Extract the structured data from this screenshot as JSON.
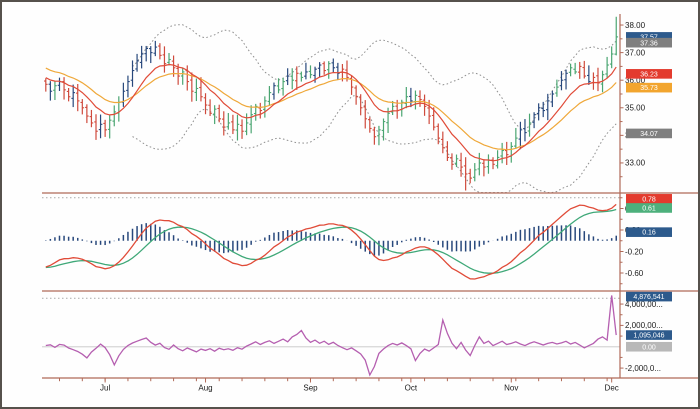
{
  "chart_data": {
    "type": "candlestick-multi-panel",
    "title": "",
    "x_axis": {
      "month_labels": [
        {
          "label": "Jul",
          "i": 13
        },
        {
          "label": "Aug",
          "i": 35
        },
        {
          "label": "Sep",
          "i": 58
        },
        {
          "label": "Oct",
          "i": 80
        },
        {
          "label": "Nov",
          "i": 102
        },
        {
          "label": "Dec",
          "i": 124
        }
      ],
      "minor_tick_every": 5
    },
    "panels": [
      {
        "id": "price",
        "type": "ohlc-bars",
        "ylim": [
          31.91,
          38.4
        ],
        "yticks_major": [
          {
            "v": 38,
            "label": "38.00"
          },
          {
            "v": 37,
            "label": "37.00"
          },
          {
            "v": 36,
            "label": "36.00"
          },
          {
            "v": 35,
            "label": "35.00"
          },
          {
            "v": 34,
            "label": "34.00"
          },
          {
            "v": 33,
            "label": "33.00"
          }
        ],
        "yticks_minor": [
          37.5,
          36.5,
          35.5,
          34.5,
          33.5,
          32.5
        ],
        "badges": [
          {
            "label": "37.57",
            "v": 37.57,
            "bg": "#2d5a8c",
            "series": "last-price"
          },
          {
            "label": "37.36",
            "v": 37.36,
            "bg": "#7f7f7f",
            "series": "bollinger-upper"
          },
          {
            "label": "36.23",
            "v": 36.23,
            "bg": "#e33b2e",
            "series": "ma-fast"
          },
          {
            "label": "35.73",
            "v": 35.73,
            "bg": "#f2a52e",
            "series": "ma-slow"
          },
          {
            "label": "34.07",
            "v": 34.07,
            "bg": "#7f7f7f",
            "series": "bollinger-lower"
          }
        ],
        "closes": [
          35.85,
          35.6,
          35.8,
          35.95,
          35.65,
          35.4,
          35.55,
          35.25,
          35.0,
          34.7,
          34.45,
          34.15,
          34.4,
          34.2,
          34.55,
          34.85,
          35.2,
          35.6,
          35.95,
          36.35,
          36.7,
          36.95,
          37.15,
          37.0,
          37.2,
          36.9,
          36.6,
          36.75,
          36.45,
          36.15,
          36.3,
          35.95,
          35.6,
          35.7,
          35.4,
          35.1,
          34.8,
          34.95,
          34.6,
          34.3,
          34.45,
          34.2,
          34.4,
          34.15,
          34.45,
          34.75,
          35.05,
          34.9,
          35.25,
          35.55,
          35.8,
          35.65,
          35.95,
          36.15,
          36.0,
          36.25,
          36.1,
          36.3,
          36.2,
          36.4,
          36.55,
          36.35,
          36.6,
          36.45,
          36.25,
          36.4,
          36.1,
          35.75,
          35.4,
          35.0,
          34.6,
          34.25,
          33.95,
          34.2,
          34.5,
          34.8,
          35.05,
          34.9,
          35.2,
          35.4,
          35.25,
          35.45,
          35.3,
          35.05,
          34.7,
          34.3,
          33.9,
          33.55,
          33.2,
          32.95,
          33.15,
          32.85,
          32.6,
          32.45,
          32.75,
          33.0,
          32.85,
          33.1,
          32.95,
          33.2,
          33.45,
          33.3,
          33.6,
          33.9,
          34.2,
          34.1,
          34.45,
          34.75,
          35.0,
          34.9,
          35.25,
          35.5,
          35.75,
          36.0,
          36.25,
          36.45,
          36.3,
          36.5,
          36.15,
          35.95,
          36.1,
          35.9,
          36.2,
          36.55,
          36.95,
          37.57
        ],
        "bar_colors": "rbgbrrbrrrrrbrgggbbbbbbbbrrgrrgrrgrrrgrrgrgrgggrggbggbgrgbgbbrgbbrrrrrrrrggggrggbgrrrrrrrrgrrrggrgrggrggbbgbbbbbgbbggrrbrrgggg",
        "bar_overrides": {
          "92": {
            "low": 32.0
          },
          "125": {
            "high": 38.3,
            "low": 36.9
          }
        },
        "overlays": {
          "ma_fast_period": 10,
          "ma_slow_period": 20,
          "bollinger_period": 20,
          "bollinger_mult": 2
        }
      },
      {
        "id": "macd",
        "type": "line-histogram",
        "ylim": [
          -0.935,
          0.814
        ],
        "yticks_major": [
          {
            "v": 0.6,
            "label": "0.60"
          },
          {
            "v": 0.2,
            "label": "0.20"
          },
          {
            "v": -0.2,
            "label": "-0.20"
          },
          {
            "v": -0.6,
            "label": "-0.60"
          }
        ],
        "yticks_minor": [
          0.8,
          0.4,
          0.0,
          -0.4,
          -0.8
        ],
        "badges": [
          {
            "label": "0.78",
            "v": 0.78,
            "bg": "#e33b2e",
            "series": "macd-line"
          },
          {
            "label": "0.61",
            "v": 0.61,
            "bg": "#4db07c",
            "series": "signal-line"
          },
          {
            "label": "0.16",
            "v": 0.16,
            "bg": "#2d5a8c",
            "series": "histogram"
          }
        ],
        "dotted_ref": 0.8,
        "params": {
          "fast": 12,
          "slow": 26,
          "signal": 9
        }
      },
      {
        "id": "volume-osc",
        "type": "line",
        "ylim": [
          -2930000,
          4850000
        ],
        "yticks_major": [
          {
            "v": 4000000,
            "label": "4,000,00..."
          },
          {
            "v": 2000000,
            "label": "2,000,00..."
          },
          {
            "v": -2000000,
            "label": "-2,000,0..."
          }
        ],
        "yticks_minor": [
          3000000,
          1000000,
          -1000000
        ],
        "badges": [
          {
            "label": "4,876,541",
            "v": 4700000,
            "bg": "#2d5a8c",
            "series": "peak-value"
          },
          {
            "label": "1,095,046",
            "v": 1095046,
            "bg": "#2d5a8c",
            "series": "last-value"
          },
          {
            "label": "0.00",
            "v": 0,
            "bg": "#b8b8b8",
            "series": "zero-level"
          }
        ],
        "dotted_ref": 4550000,
        "zero_line": 0,
        "values": [
          120000,
          180000,
          -60000,
          220000,
          150000,
          -120000,
          -280000,
          -450000,
          -700000,
          -1050000,
          -500000,
          -150000,
          250000,
          -80000,
          -750000,
          -1700000,
          -850000,
          -250000,
          120000,
          350000,
          520000,
          680000,
          820000,
          420000,
          150000,
          320000,
          -80000,
          -240000,
          160000,
          -180000,
          -380000,
          -120000,
          -300000,
          -480000,
          -220000,
          -340000,
          -180000,
          -420000,
          -140000,
          -280000,
          -190000,
          -330000,
          -90000,
          -230000,
          60000,
          260000,
          460000,
          210000,
          410000,
          560000,
          310000,
          510000,
          720000,
          460000,
          920000,
          1150000,
          1520000,
          820000,
          420000,
          620000,
          320000,
          520000,
          220000,
          420000,
          120000,
          -90000,
          -280000,
          -110000,
          -380000,
          -680000,
          -1250000,
          -2650000,
          -1850000,
          -620000,
          -210000,
          110000,
          310000,
          160000,
          360000,
          110000,
          -190000,
          -1300000,
          -620000,
          -210000,
          -410000,
          -110000,
          210000,
          2500000,
          1250000,
          320000,
          -180000,
          410000,
          -310000,
          -820000,
          120000,
          920000,
          310000,
          520000,
          110000,
          310000,
          520000,
          210000,
          310000,
          460000,
          260000,
          110000,
          310000,
          460000,
          310000,
          160000,
          310000,
          410000,
          260000,
          360000,
          510000,
          260000,
          410000,
          160000,
          -110000,
          110000,
          310000,
          720000,
          920000,
          620000,
          4876541,
          1095046
        ]
      }
    ],
    "colors": {
      "bar_up": "#4aa571",
      "bar_down": "#cf4a3c",
      "bar_neutral": "#28487c",
      "ma_fast": "#e04b38",
      "ma_slow": "#efa83a",
      "bollinger": "#8f8f8f",
      "macd": "#e04b38",
      "signal": "#3fa878",
      "histogram": "#28487c",
      "volume_line": "#b55fb0",
      "axis": "#b06a58",
      "tick_text": "#1a1a1a",
      "zero_line": "#d6d6d6",
      "badge_text": "#ffffff",
      "frame": "#56524c",
      "dotted_ref": "#a9a9a9"
    }
  }
}
